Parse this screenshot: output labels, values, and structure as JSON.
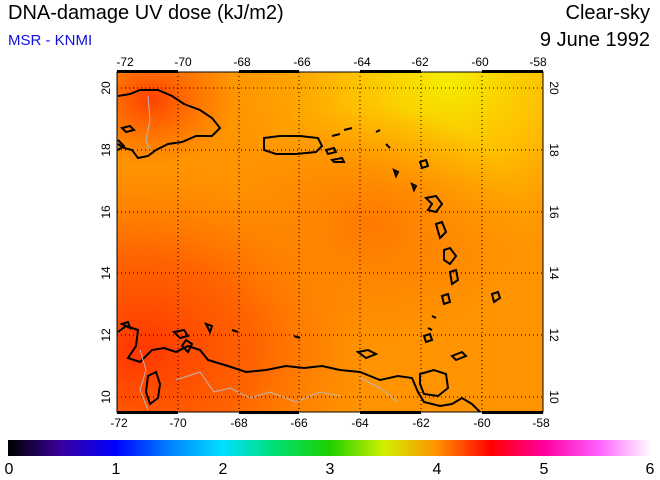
{
  "title": "DNA-damage UV dose (kJ/m2)",
  "source": "MSR - KNMI",
  "sky_condition": "Clear-sky",
  "date": "9 June 1992",
  "map": {
    "lon_range": [
      -72,
      -58
    ],
    "lat_range": [
      9.5,
      20.5
    ],
    "lon_ticks": [
      -72,
      -70,
      -68,
      -66,
      -64,
      -62,
      -60,
      -58
    ],
    "lat_ticks": [
      10,
      12,
      14,
      16,
      18,
      20
    ],
    "lon_tick_labels": [
      "-72",
      "-70",
      "-68",
      "-66",
      "-64",
      "-62",
      "-60",
      "-58"
    ],
    "lat_tick_labels": [
      "10",
      "12",
      "14",
      "16",
      "18",
      "20"
    ],
    "gridlines": "dotted",
    "field_colors": {
      "low": "#ffe000",
      "mid": "#ff9c00",
      "high": "#ff6a00",
      "peak": "#ff3a00",
      "coast": "#000000",
      "border": "#aaaaaa"
    }
  },
  "colorbar": {
    "min": 0,
    "max": 6,
    "labels": [
      "0",
      "1",
      "2",
      "3",
      "4",
      "5",
      "6"
    ],
    "stops": [
      {
        "value": 0,
        "color": "#000000"
      },
      {
        "value": 0.5,
        "color": "#3a00a0"
      },
      {
        "value": 1,
        "color": "#0000ff"
      },
      {
        "value": 1.5,
        "color": "#0080ff"
      },
      {
        "value": 2,
        "color": "#00e0ff"
      },
      {
        "value": 2.5,
        "color": "#00e070"
      },
      {
        "value": 3,
        "color": "#20d000"
      },
      {
        "value": 3.5,
        "color": "#d0f000"
      },
      {
        "value": 4,
        "color": "#ff9000"
      },
      {
        "value": 4.5,
        "color": "#ff0000"
      },
      {
        "value": 5,
        "color": "#ff00a0"
      },
      {
        "value": 5.5,
        "color": "#ff60ff"
      },
      {
        "value": 6,
        "color": "#ffffff"
      }
    ]
  }
}
